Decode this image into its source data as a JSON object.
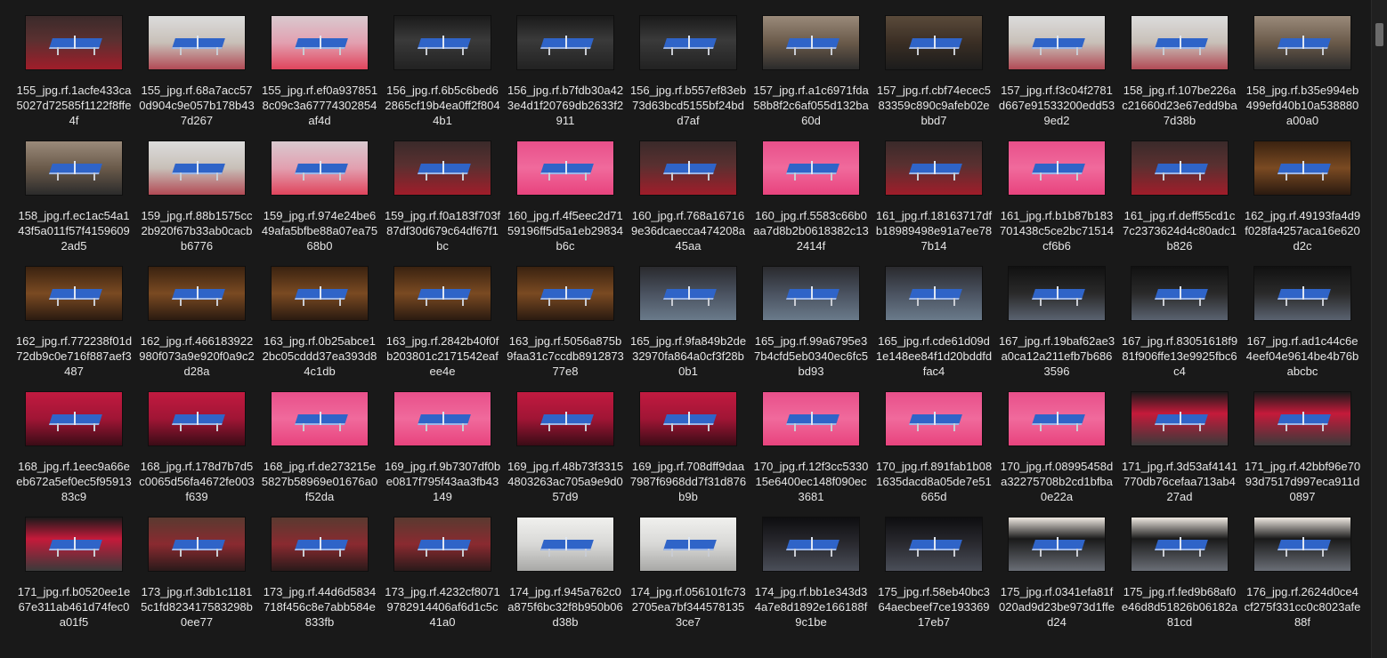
{
  "window": {
    "background": "#191919",
    "caption_color": "#e6e6e6"
  },
  "files": [
    {
      "name": "155_jpg.rf.1acfe433ca5027d72585f1122f8ffe4f",
      "style": "red"
    },
    {
      "name": "155_jpg.rf.68a7acc570d904c9e057b178b437d267",
      "style": "bright"
    },
    {
      "name": "155_jpg.rf.ef0a9378518c09c3a67774302854af4d",
      "style": "pink"
    },
    {
      "name": "156_jpg.rf.6b5c6bed62865cf19b4ea0ff2f8044b1",
      "style": "darkbanner"
    },
    {
      "name": "156_jpg.rf.b7fdb30a423e4d1f20769db2633f2911",
      "style": "darkbanner"
    },
    {
      "name": "156_jpg.rf.b557ef83eb73d63bcd5155bf24bdd7af",
      "style": "darkbanner"
    },
    {
      "name": "157_jpg.rf.a1c6971fda58b8f2c6af055d132ba60d",
      "style": "gym"
    },
    {
      "name": "157_jpg.rf.cbf74ecec583359c890c9afeb02ebbd7",
      "style": "gymdark"
    },
    {
      "name": "157_jpg.rf.f3c04f2781d667e91533200edd539ed2",
      "style": "bright"
    },
    {
      "name": "158_jpg.rf.107be226ac21660d23e67edd9ba7d38b",
      "style": "bright"
    },
    {
      "name": "158_jpg.rf.b35e994eb499efd40b10a538880a00a0",
      "style": "gym"
    },
    {
      "name": "158_jpg.rf.ec1ac54a143f5a011f57f41596092ad5",
      "style": "gym"
    },
    {
      "name": "159_jpg.rf.88b1575cc2b920f67b33ab0cacbb6776",
      "style": "bright"
    },
    {
      "name": "159_jpg.rf.974e24be649afa5bfbe88a07ea7568b0",
      "style": "pink"
    },
    {
      "name": "159_jpg.rf.f0a183f703f87df30d679c64df67f1bc",
      "style": "red"
    },
    {
      "name": "160_jpg.rf.4f5eec2d7159196ff5d5a1eb29834b6c",
      "style": "magenta"
    },
    {
      "name": "160_jpg.rf.768a167169e36dcaecca474208a45aa",
      "style": "red"
    },
    {
      "name": "160_jpg.rf.5583c66b0aa7d8b2b0618382c132414f",
      "style": "magenta"
    },
    {
      "name": "161_jpg.rf.18163717dfb18989498e91a7ee787b14",
      "style": "red"
    },
    {
      "name": "161_jpg.rf.b1b87b183701438c5ce2bc71514cf6b6",
      "style": "magenta"
    },
    {
      "name": "161_jpg.rf.deff55cd1c7c2373624d4c80adc1b826",
      "style": "red"
    },
    {
      "name": "162_jpg.rf.49193fa4d9f028fa4257aca16e620d2c",
      "style": "wood"
    },
    {
      "name": "162_jpg.rf.772238f01d72db9c0e716f887aef3487",
      "style": "wood"
    },
    {
      "name": "162_jpg.rf.466183922980f073a9e920f0a9c2d28a",
      "style": "wood"
    },
    {
      "name": "163_jpg.rf.0b25abce12bc05cddd37ea393d84c1db",
      "style": "wood"
    },
    {
      "name": "163_jpg.rf.2842b40f0fb203801c2171542eafee4e",
      "style": "wood"
    },
    {
      "name": "163_jpg.rf.5056a875b9faa31c7ccdb891287377e8",
      "style": "wood"
    },
    {
      "name": "165_jpg.rf.9fa849b2de32970fa864a0cf3f28b0b1",
      "style": "hall"
    },
    {
      "name": "165_jpg.rf.99a6795e37b4cfd5eb0340ec6fc5bd93",
      "style": "hall"
    },
    {
      "name": "165_jpg.rf.cde61d09d1e148ee84f1d20bddfdfac4",
      "style": "hall"
    },
    {
      "name": "167_jpg.rf.19baf62ae3a0ca12a211efb7b6863596",
      "style": "curtain"
    },
    {
      "name": "167_jpg.rf.83051618f981f906ffe13e9925fbc6c4",
      "style": "curtain"
    },
    {
      "name": "167_jpg.rf.ad1c44c6e4eef04e9614be4b76babcbc",
      "style": "curtain"
    },
    {
      "name": "168_jpg.rf.1eec9a66eeb672a5ef0ec5f9591383c9",
      "style": "redbig"
    },
    {
      "name": "168_jpg.rf.178d7b7d5c0065d56fa4672fe003f639",
      "style": "redbig"
    },
    {
      "name": "168_jpg.rf.de273215e5827b58969e01676a0f52da",
      "style": "magenta"
    },
    {
      "name": "169_jpg.rf.9b7307df0be0817f795f43aa3fb43149",
      "style": "magenta"
    },
    {
      "name": "169_jpg.rf.48b73f33154803263ac705a9e9d057d9",
      "style": "redbig"
    },
    {
      "name": "169_jpg.rf.708dff9daa7987f6968dd7f31d876b9b",
      "style": "redbig"
    },
    {
      "name": "170_jpg.rf.12f3cc533015e6400ec148f090ec3681",
      "style": "magenta"
    },
    {
      "name": "170_jpg.rf.891fab1b081635dacd8a05de7e51665d",
      "style": "magenta"
    },
    {
      "name": "170_jpg.rf.08995458da32275708b2cd1bfba0e22a",
      "style": "magenta"
    },
    {
      "name": "171_jpg.rf.3d53af4141770db76cefaa713ab427ad",
      "style": "redbanner"
    },
    {
      "name": "171_jpg.rf.42bbf96e7093d7517d997eca911d0897",
      "style": "redbanner"
    },
    {
      "name": "171_jpg.rf.b0520ee1e67e311ab461d74fec0a01f5",
      "style": "redbanner"
    },
    {
      "name": "173_jpg.rf.3db1c11815c1fd823417583298b0ee77",
      "style": "crowd"
    },
    {
      "name": "173_jpg.rf.44d6d5834718f456c8e7abb584e833fb",
      "style": "crowd"
    },
    {
      "name": "173_jpg.rf.4232cf80719782914406af6d1c5c41a0",
      "style": "crowd"
    },
    {
      "name": "174_jpg.rf.945a762c0a875f6bc32f8b950b06d38b",
      "style": "white"
    },
    {
      "name": "174_jpg.rf.056101fc732705ea7bf3445781353ce7",
      "style": "white"
    },
    {
      "name": "174_jpg.rf.bb1e343d34a7e8d1892e166188f9c1be",
      "style": "darkhall"
    },
    {
      "name": "175_jpg.rf.58eb40bc364aecbeef7ce19336917eb7",
      "style": "darkhall"
    },
    {
      "name": "175_jpg.rf.0341efa81f020ad9d23be973d1ffed24",
      "style": "curtainwhite"
    },
    {
      "name": "175_jpg.rf.fed9b68af0e46d8d51826b06182a81cd",
      "style": "curtainwhite"
    },
    {
      "name": "176_jpg.rf.2624d0ce4cf275f331cc0c8023afe88f",
      "style": "curtainwhite"
    }
  ],
  "thumb_styles": {
    "red": {
      "bg": "linear-gradient(180deg,#3a2a2a 0%,#5a3030 45%,#a01d2a 100%)"
    },
    "bright": {
      "bg": "linear-gradient(180deg,#dcdcdc 0%,#c8c0b8 50%,#b24a55 100%)"
    },
    "pink": {
      "bg": "linear-gradient(180deg,#d9c9cf 0%,#e2a0b0 50%,#e0445c 100%)"
    },
    "darkbanner": {
      "bg": "linear-gradient(180deg,#1a1a1a 0%,#3a3a3a 45%,#222 100%)"
    },
    "gym": {
      "bg": "linear-gradient(180deg,#9a8a7a 0%,#6a5a4a 50%,#2b2b2b 100%)"
    },
    "gymdark": {
      "bg": "linear-gradient(180deg,#5a4a3a 0%,#3a2e24 50%,#1c1c1c 100%)"
    },
    "magenta": {
      "bg": "linear-gradient(180deg,#e8508a 0%,#f06a9c 50%,#e8437d 100%)"
    },
    "wood": {
      "bg": "linear-gradient(180deg,#3a2210 0%,#7a4a22 50%,#2a1a10 100%)"
    },
    "hall": {
      "bg": "linear-gradient(180deg,#2a2a2e 0%,#4a5260 50%,#6a7a8a 100%)"
    },
    "curtain": {
      "bg": "linear-gradient(180deg,#111 0%,#2a2a2a 50%,#5a6270 100%)"
    },
    "redbig": {
      "bg": "linear-gradient(180deg,#c21a40 0%,#a01535 50%,#3a0c16 100%)"
    },
    "redbanner": {
      "bg": "linear-gradient(180deg,#1a1a1a 0%,#c51a3a 40%,#3a3a3a 100%)"
    },
    "crowd": {
      "bg": "linear-gradient(180deg,#5a3a30 0%,#8a2a30 50%,#2a1a1a 100%)"
    },
    "white": {
      "bg": "linear-gradient(180deg,#f0f0ee 0%,#d8d8d6 50%,#a8a8a6 100%)"
    },
    "darkhall": {
      "bg": "linear-gradient(180deg,#0e0e10 0%,#2a2a30 50%,#4a4e58 100%)"
    },
    "curtainwhite": {
      "bg": "linear-gradient(180deg,#efe9e2 0%,#1a1a1a 40%,#6a6e76 100%)"
    }
  }
}
